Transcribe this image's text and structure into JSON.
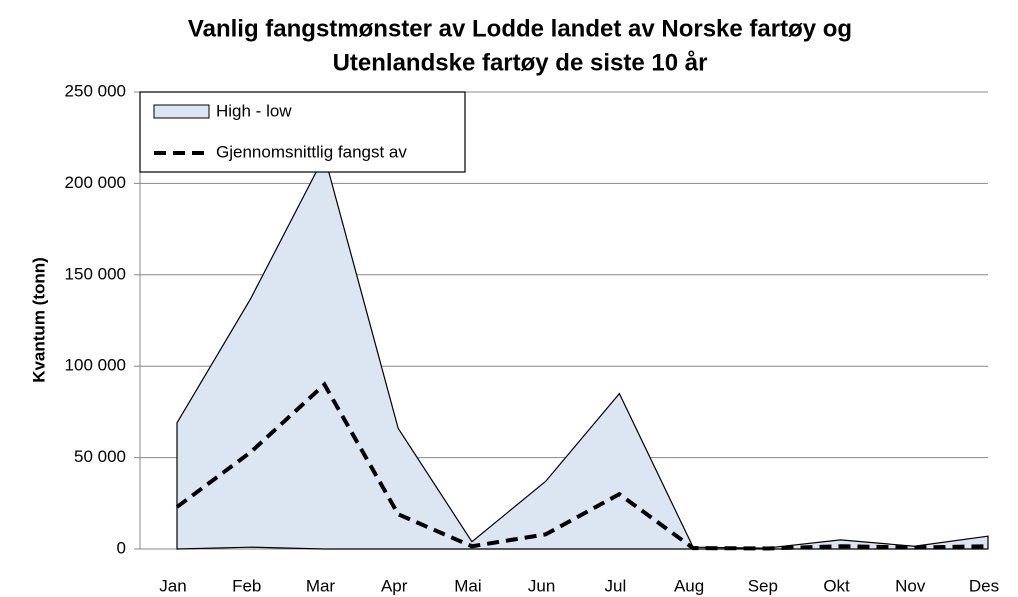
{
  "chart_data": {
    "type": "band-line",
    "title": [
      "Vanlig fangstmønster av Lodde landet av Norske fartøy og",
      "Utenlandske fartøy de siste 10 år"
    ],
    "y_label": "Kvantum (tonn)",
    "categories": [
      "Jan",
      "Feb",
      "Mar",
      "Apr",
      "Mai",
      "Jun",
      "Jul",
      "Aug",
      "Sep",
      "Okt",
      "Nov",
      "Des"
    ],
    "series": [
      {
        "name": "High - low",
        "color": "#dce6f2",
        "values": [
          69000,
          137000,
          215000,
          66000,
          4000,
          37000,
          85000,
          1000,
          500,
          5000,
          1500,
          7000
        ],
        "low": [
          0,
          1000,
          0,
          0,
          0,
          0,
          0,
          0,
          0,
          0,
          0,
          0
        ]
      },
      {
        "name": "Gjennomsnittlig fangst av",
        "color": "#000000",
        "values": [
          23000,
          53000,
          90000,
          19000,
          1500,
          8000,
          30000,
          500,
          300,
          1500,
          800,
          1500
        ]
      }
    ],
    "ylim": [
      0,
      250000
    ],
    "yticks": [
      {
        "value": 0,
        "label": "0"
      },
      {
        "value": 50000,
        "label": "50 000"
      },
      {
        "value": 100000,
        "label": "100 000"
      },
      {
        "value": 150000,
        "label": "150 000"
      },
      {
        "value": 200000,
        "label": "200 000"
      },
      {
        "value": 250000,
        "label": "250 000"
      }
    ],
    "grid": true,
    "legend": "top-left"
  }
}
